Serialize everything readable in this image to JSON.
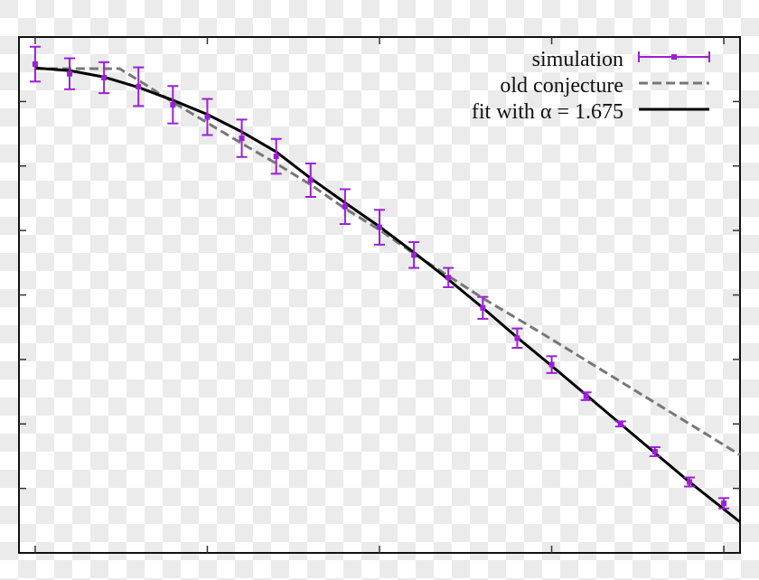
{
  "chart_data": {
    "type": "line",
    "title": "",
    "xlabel": "",
    "ylabel": "",
    "x_tick_labels": [],
    "y_tick_labels": [],
    "x_ticks": [
      0,
      1,
      2,
      3,
      4
    ],
    "y_ticks": [
      1,
      2,
      3,
      4,
      5,
      6,
      7
    ],
    "xlim": [
      -0.094,
      4.094
    ],
    "ylim": [
      0,
      8
    ],
    "grid": false,
    "legend_position": "top-right",
    "series": [
      {
        "name": "simulation",
        "kind": "points-with-yerror",
        "color": "#9b1fd6",
        "x": [
          0.0,
          0.2,
          0.4,
          0.6,
          0.8,
          1.0,
          1.2,
          1.4,
          1.6,
          1.8,
          2.0,
          2.2,
          2.4,
          2.6,
          2.8,
          3.0,
          3.2,
          3.4,
          3.6,
          3.8,
          4.0
        ],
        "y": [
          7.58,
          7.43,
          7.37,
          7.23,
          6.95,
          6.76,
          6.43,
          6.15,
          5.78,
          5.37,
          5.05,
          4.62,
          4.27,
          3.8,
          3.33,
          2.92,
          2.43,
          2.0,
          1.57,
          1.1,
          0.77
        ],
        "yerr": [
          0.27,
          0.24,
          0.24,
          0.3,
          0.29,
          0.28,
          0.29,
          0.27,
          0.26,
          0.27,
          0.27,
          0.2,
          0.15,
          0.17,
          0.15,
          0.13,
          0.06,
          0.04,
          0.07,
          0.07,
          0.08
        ]
      },
      {
        "name": "old conjecture",
        "kind": "dashed-line",
        "color": "#777777",
        "x": [
          0.0,
          0.49,
          0.6,
          0.8,
          1.0,
          1.2,
          1.4,
          1.6,
          1.8,
          2.0,
          2.2,
          2.6,
          2.94,
          4.094
        ],
        "y": [
          7.51,
          7.51,
          7.33,
          6.99,
          6.67,
          6.35,
          6.04,
          5.71,
          5.34,
          5.01,
          4.64,
          3.95,
          3.41,
          1.52
        ]
      },
      {
        "name": "fit with α = 1.675",
        "kind": "solid-line",
        "color": "#000000",
        "x": [
          0.0,
          0.2,
          0.4,
          0.6,
          0.8,
          1.0,
          1.2,
          1.4,
          1.6,
          1.8,
          2.0,
          2.2,
          2.4,
          2.6,
          2.8,
          3.0,
          3.2,
          3.4,
          3.6,
          3.8,
          4.094
        ],
        "y": [
          7.52,
          7.48,
          7.38,
          7.22,
          7.02,
          6.8,
          6.53,
          6.22,
          5.81,
          5.43,
          5.06,
          4.66,
          4.24,
          3.8,
          3.34,
          2.9,
          2.45,
          2.0,
          1.55,
          1.1,
          0.48
        ]
      }
    ]
  },
  "legend": {
    "items": [
      {
        "label": "simulation"
      },
      {
        "label": "old conjecture"
      },
      {
        "label": "fit with α = 1.675"
      }
    ]
  }
}
